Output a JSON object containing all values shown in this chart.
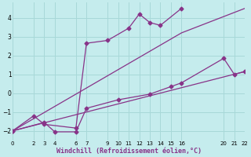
{
  "xlabel": "Windchill (Refroidissement éolien,°C)",
  "bg_color": "#c5eced",
  "grid_color": "#a8d8d8",
  "line_color": "#883388",
  "xlim": [
    0,
    22
  ],
  "ylim": [
    -2.5,
    4.8
  ],
  "xticks": [
    0,
    2,
    3,
    4,
    6,
    7,
    9,
    10,
    11,
    12,
    13,
    14,
    15,
    16,
    20,
    21,
    22
  ],
  "yticks": [
    -2,
    -1,
    0,
    1,
    2,
    3,
    4
  ],
  "lines": [
    {
      "x": [
        0,
        2,
        3,
        6,
        7,
        9,
        11,
        12,
        13,
        14,
        16
      ],
      "y": [
        -2,
        -1.2,
        -1.65,
        -1.85,
        2.65,
        2.8,
        3.45,
        4.2,
        3.75,
        3.6,
        4.5
      ],
      "marker": "D",
      "markersize": 2.5,
      "lw": 0.9
    },
    {
      "x": [
        0,
        3,
        4,
        6,
        7,
        10,
        13,
        15,
        16,
        20,
        21,
        22
      ],
      "y": [
        -2,
        -1.55,
        -2.05,
        -2.05,
        -0.8,
        -0.35,
        -0.05,
        0.35,
        0.55,
        1.85,
        1.0,
        1.15
      ],
      "marker": "D",
      "markersize": 2.5,
      "lw": 0.9
    },
    {
      "x": [
        0,
        16,
        22
      ],
      "y": [
        -2,
        3.2,
        4.5
      ],
      "marker": null,
      "markersize": 0,
      "lw": 0.9
    },
    {
      "x": [
        0,
        22
      ],
      "y": [
        -2,
        1.15
      ],
      "marker": null,
      "markersize": 0,
      "lw": 0.9
    }
  ]
}
